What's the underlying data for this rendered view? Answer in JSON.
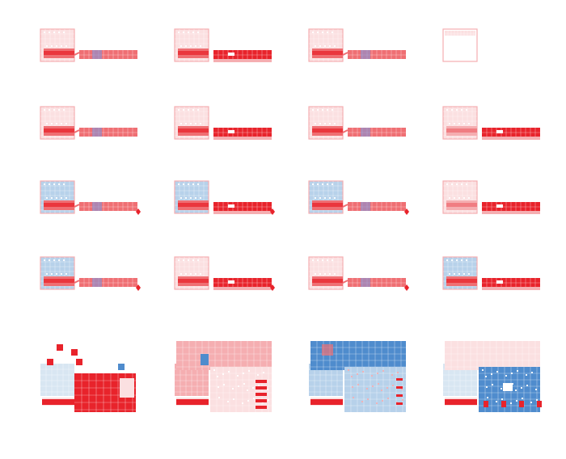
{
  "figure": {
    "rows": 5,
    "columns": 4,
    "palette": {
      "pale_red": "#fbe0e1",
      "light_red": "#f5aeb1",
      "mid_red": "#ef6f73",
      "red": "#e8232b",
      "pale_blue": "#d8e6f2",
      "light_blue": "#b7d1ea",
      "blue": "#4f8ccd",
      "grid_line": "#ffffff"
    },
    "panels": [
      {
        "row": 1,
        "col": 1,
        "style": "red-connected"
      },
      {
        "row": 1,
        "col": 2,
        "style": "red-solid"
      },
      {
        "row": 1,
        "col": 3,
        "style": "red-connected"
      },
      {
        "row": 1,
        "col": 4,
        "style": "outline-only"
      },
      {
        "row": 2,
        "col": 1,
        "style": "red-connected"
      },
      {
        "row": 2,
        "col": 2,
        "style": "red-solid"
      },
      {
        "row": 2,
        "col": 3,
        "style": "red-connected"
      },
      {
        "row": 2,
        "col": 4,
        "style": "red-solid-pale"
      },
      {
        "row": 3,
        "col": 1,
        "style": "blue-top-connected"
      },
      {
        "row": 3,
        "col": 2,
        "style": "blue-top-solid"
      },
      {
        "row": 3,
        "col": 3,
        "style": "blue-top-connected"
      },
      {
        "row": 3,
        "col": 4,
        "style": "red-solid-pale"
      },
      {
        "row": 4,
        "col": 1,
        "style": "blue-top-connected"
      },
      {
        "row": 4,
        "col": 2,
        "style": "red-solid"
      },
      {
        "row": 4,
        "col": 3,
        "style": "red-connected"
      },
      {
        "row": 4,
        "col": 4,
        "style": "blue-top-solid"
      },
      {
        "row": 5,
        "col": 1,
        "style": "large-red"
      },
      {
        "row": 5,
        "col": 2,
        "style": "large-pink"
      },
      {
        "row": 5,
        "col": 3,
        "style": "large-blue"
      },
      {
        "row": 5,
        "col": 4,
        "style": "large-mixed"
      }
    ]
  }
}
